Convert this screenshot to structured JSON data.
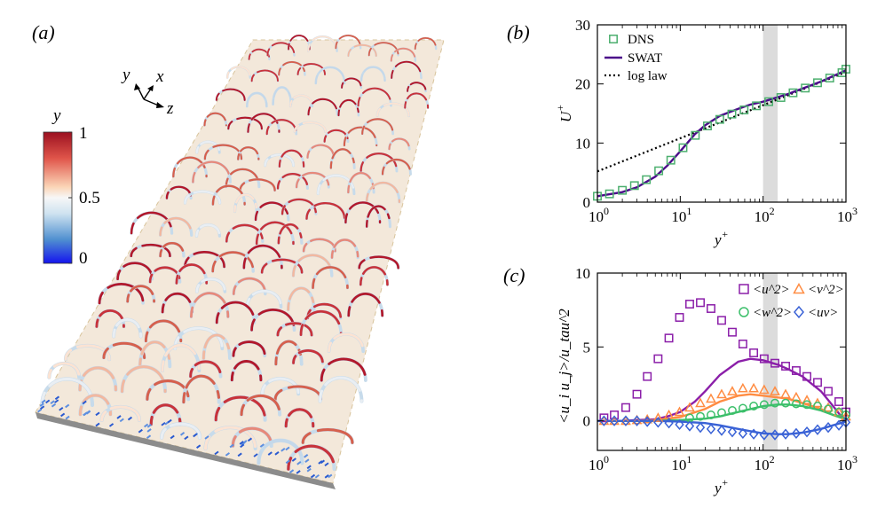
{
  "panels": {
    "a": {
      "label": "(a)",
      "colorbar": {
        "title": "y",
        "ticks": [
          "1",
          "0.5",
          "0"
        ],
        "colors": [
          "#b2182b",
          "#ef8a62",
          "#fddbc7",
          "#f7f7f7",
          "#d1e5f0",
          "#67a9cf",
          "#2166ac",
          "#1a1aff"
        ]
      },
      "axes_triad": {
        "y": "y",
        "x": "x",
        "z": "z"
      }
    },
    "b": {
      "label": "(b)"
    },
    "c": {
      "label": "(c)"
    }
  },
  "chart_data": [
    {
      "id": "b",
      "type": "line",
      "xscale": "log",
      "xlim": [
        1,
        1000
      ],
      "ylim": [
        0,
        30
      ],
      "xlabel": "y+",
      "ylabel": "U+",
      "xticks": [
        1,
        10,
        100,
        1000
      ],
      "xtick_labels": [
        "10^0",
        "10^1",
        "10^2",
        "10^3"
      ],
      "yticks": [
        0,
        10,
        20,
        30
      ],
      "ytick_labels": [
        "0",
        "10",
        "20",
        "30"
      ],
      "shaded_band": [
        100,
        150
      ],
      "legend": [
        "DNS",
        "SWAT",
        "log law"
      ],
      "series": [
        {
          "name": "DNS",
          "kind": "markers",
          "marker": "square",
          "color": "#4caf6e",
          "x": [
            1.0,
            1.4,
            2.0,
            2.8,
            3.9,
            5.5,
            7.7,
            10.8,
            15.2,
            21.3,
            30,
            42,
            59,
            83,
            117,
            164,
            230,
            323,
            454,
            638,
            896,
            1000
          ],
          "y": [
            1.0,
            1.4,
            2.0,
            2.8,
            3.8,
            5.3,
            7.1,
            9.2,
            11.3,
            12.9,
            14.0,
            14.9,
            15.6,
            16.3,
            17.0,
            17.7,
            18.5,
            19.3,
            20.2,
            21.0,
            21.9,
            22.5
          ]
        },
        {
          "name": "SWAT",
          "kind": "line",
          "color": "#4b0b8a",
          "x": [
            1,
            2,
            3,
            5,
            7,
            10,
            15,
            20,
            30,
            50,
            70,
            100,
            200,
            500,
            1000
          ],
          "y": [
            1.0,
            1.7,
            2.5,
            4.3,
            6.2,
            8.6,
            11.5,
            13.0,
            14.6,
            15.8,
            16.5,
            17.0,
            18.3,
            20.4,
            22.3
          ]
        },
        {
          "name": "log law",
          "kind": "dotted",
          "color": "#000000",
          "x": [
            1,
            1000
          ],
          "y": [
            5.2,
            22.0
          ]
        }
      ]
    },
    {
      "id": "c",
      "type": "line",
      "xscale": "log",
      "xlim": [
        1,
        1000
      ],
      "ylim": [
        -2,
        10
      ],
      "xlabel": "y+",
      "ylabel": "<u_i u_j>/u_tau^2",
      "xticks": [
        1,
        10,
        100,
        1000
      ],
      "xtick_labels": [
        "10^0",
        "10^1",
        "10^2",
        "10^3"
      ],
      "yticks": [
        0,
        5,
        10
      ],
      "ytick_labels": [
        "0",
        "5",
        "10"
      ],
      "shaded_band": [
        100,
        150
      ],
      "legend": [
        "<u^2>",
        "<v^2>",
        "<w^2>",
        "<uv>"
      ],
      "series": [
        {
          "name": "<u^2>",
          "marker": "square",
          "color": "#8b1fa9",
          "x": [
            1.2,
            1.6,
            2.2,
            3.0,
            4.0,
            5.4,
            7.3,
            9.8,
            13,
            17.5,
            23.5,
            31.6,
            42.5,
            57,
            77,
            103,
            139,
            187,
            251,
            338,
            454,
            611,
            822,
            1000
          ],
          "y": [
            0.2,
            0.4,
            0.9,
            1.8,
            3.0,
            4.2,
            5.6,
            7.0,
            7.9,
            8.0,
            7.6,
            6.8,
            6.0,
            5.2,
            4.6,
            4.2,
            3.9,
            3.7,
            3.4,
            3.0,
            2.6,
            2.0,
            1.3,
            0.6
          ],
          "model_x": [
            1,
            2,
            3,
            5,
            7,
            10,
            15,
            20,
            30,
            50,
            70,
            100,
            150,
            200,
            300,
            500,
            700,
            850,
            1000
          ],
          "model_y": [
            0,
            0,
            0.05,
            0.1,
            0.3,
            0.6,
            1.3,
            2.0,
            3.1,
            4.0,
            4.2,
            4.1,
            3.8,
            3.5,
            3.0,
            2.0,
            1.0,
            0.4,
            0.1
          ]
        },
        {
          "name": "<v^2>",
          "marker": "triangle",
          "color": "#ff8c42",
          "x": [
            1.2,
            1.6,
            2.2,
            3.0,
            4.0,
            5.4,
            7.3,
            9.8,
            13,
            17.5,
            23.5,
            31.6,
            42.5,
            57,
            77,
            103,
            139,
            187,
            251,
            338,
            454,
            611,
            822,
            1000
          ],
          "y": [
            0,
            0,
            0,
            0.05,
            0.1,
            0.2,
            0.4,
            0.6,
            0.9,
            1.2,
            1.5,
            1.8,
            2.0,
            2.2,
            2.2,
            2.1,
            2.0,
            1.8,
            1.6,
            1.4,
            1.2,
            0.9,
            0.6,
            0.3
          ],
          "model_x": [
            1,
            3,
            5,
            10,
            20,
            30,
            50,
            70,
            100,
            200,
            300,
            500,
            700,
            1000
          ],
          "model_y": [
            0,
            0,
            0.05,
            0.25,
            0.8,
            1.3,
            1.7,
            1.8,
            1.7,
            1.5,
            1.2,
            0.8,
            0.4,
            0.1
          ]
        },
        {
          "name": "<w^2>",
          "marker": "circle",
          "color": "#3bbf6a",
          "x": [
            13,
            17.5,
            23.5,
            31.6,
            42.5,
            57,
            77,
            103,
            139,
            187,
            251,
            338,
            454,
            611,
            822,
            1000
          ],
          "y": [
            0.2,
            0.3,
            0.4,
            0.55,
            0.7,
            0.85,
            1.0,
            1.1,
            1.2,
            1.2,
            1.15,
            1.1,
            1.0,
            0.8,
            0.6,
            0.4
          ],
          "model_x": [
            1,
            5,
            10,
            20,
            30,
            50,
            100,
            150,
            200,
            300,
            500,
            700,
            1000
          ],
          "model_y": [
            0,
            0,
            0.05,
            0.15,
            0.3,
            0.6,
            1.0,
            1.1,
            1.1,
            1.0,
            0.7,
            0.4,
            0.1
          ]
        },
        {
          "name": "<uv>",
          "marker": "diamond",
          "color": "#3a62d6",
          "x": [
            1.2,
            1.6,
            2.2,
            3.0,
            4.0,
            5.4,
            7.3,
            9.8,
            13,
            17.5,
            23.5,
            31.6,
            42.5,
            57,
            77,
            103,
            139,
            187,
            251,
            338,
            454,
            611,
            822,
            1000
          ],
          "y": [
            0,
            0,
            0,
            0,
            -0.05,
            -0.1,
            -0.15,
            -0.25,
            -0.35,
            -0.45,
            -0.55,
            -0.65,
            -0.75,
            -0.85,
            -0.9,
            -0.95,
            -0.95,
            -0.9,
            -0.85,
            -0.75,
            -0.6,
            -0.45,
            -0.3,
            -0.1
          ],
          "model_x": [
            1,
            5,
            10,
            20,
            30,
            50,
            70,
            100,
            150,
            200,
            300,
            500,
            700,
            1000
          ],
          "model_y": [
            0,
            0,
            -0.05,
            -0.15,
            -0.3,
            -0.55,
            -0.7,
            -0.85,
            -0.9,
            -0.9,
            -0.8,
            -0.55,
            -0.3,
            -0.05
          ]
        }
      ]
    }
  ]
}
